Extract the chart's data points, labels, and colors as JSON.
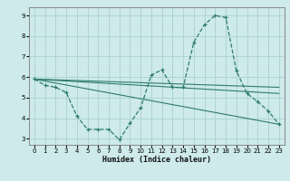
{
  "xlabel": "Humidex (Indice chaleur)",
  "bg_color": "#ceeaea",
  "line_color": "#2e7b6e",
  "grid_color": "#aed4d4",
  "xlim": [
    -0.5,
    23.5
  ],
  "ylim": [
    2.7,
    9.4
  ],
  "xticks": [
    0,
    1,
    2,
    3,
    4,
    5,
    6,
    7,
    8,
    9,
    10,
    11,
    12,
    13,
    14,
    15,
    16,
    17,
    18,
    19,
    20,
    21,
    22,
    23
  ],
  "yticks": [
    3,
    4,
    5,
    6,
    7,
    8,
    9
  ],
  "series": [
    {
      "x": [
        0,
        1,
        2,
        3,
        4,
        5,
        6,
        7,
        8,
        9,
        10,
        11,
        12,
        13,
        14,
        15,
        16,
        17,
        18,
        19,
        20,
        21,
        22,
        23
      ],
      "y": [
        5.9,
        5.6,
        5.5,
        5.25,
        4.1,
        3.45,
        3.45,
        3.45,
        2.95,
        3.75,
        4.5,
        6.1,
        6.35,
        5.5,
        5.5,
        7.7,
        8.55,
        9.0,
        8.9,
        6.3,
        5.2,
        4.8,
        4.35,
        3.7
      ],
      "has_marker": true
    },
    {
      "x": [
        0,
        23
      ],
      "y": [
        5.9,
        3.7
      ],
      "has_marker": false
    },
    {
      "x": [
        0,
        23
      ],
      "y": [
        5.9,
        5.2
      ],
      "has_marker": false
    },
    {
      "x": [
        0,
        23
      ],
      "y": [
        5.9,
        5.5
      ],
      "has_marker": false
    }
  ]
}
